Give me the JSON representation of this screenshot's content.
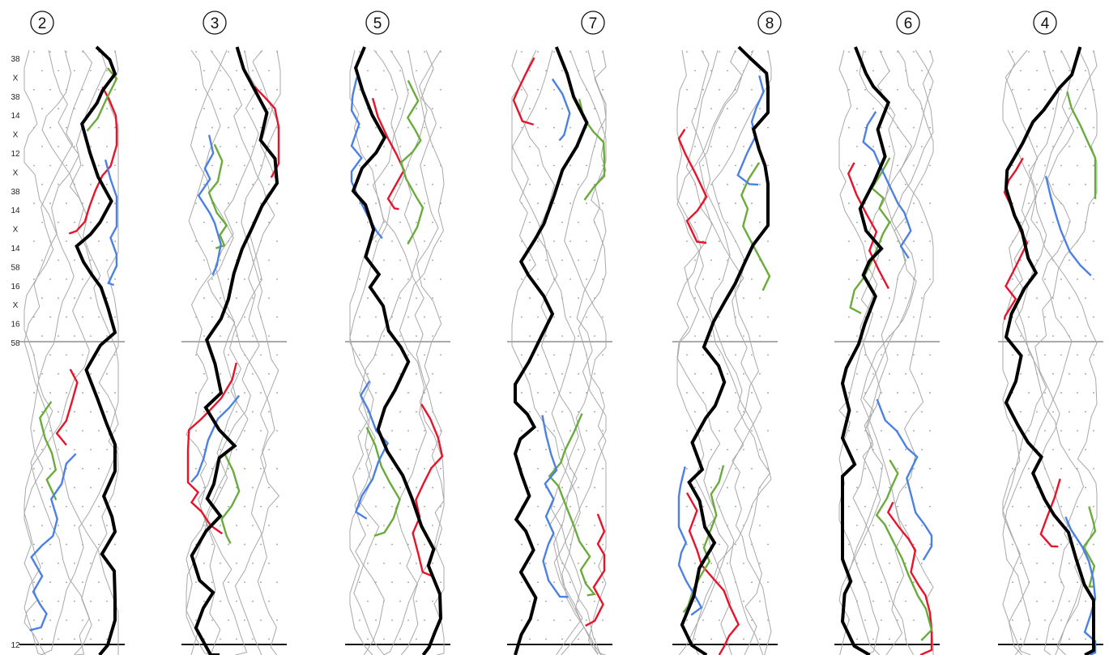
{
  "panels": [
    {
      "number": "2"
    },
    {
      "number": "3"
    },
    {
      "number": "5"
    },
    {
      "number": "7"
    },
    {
      "number": "8"
    },
    {
      "number": "6"
    },
    {
      "number": "4"
    }
  ],
  "row_labels": [
    "38",
    "X",
    "38",
    "14",
    "X",
    "12",
    "X",
    "38",
    "14",
    "X",
    "14",
    "58",
    "16",
    "X",
    "16",
    "58"
  ],
  "bottom_label": "12",
  "colors": {
    "red": "#e8132a",
    "green": "#6aab3c",
    "blue": "#4d80e4",
    "black": "#000000",
    "thread": "#a8a8a8",
    "dots": "#9a9a9a"
  }
}
